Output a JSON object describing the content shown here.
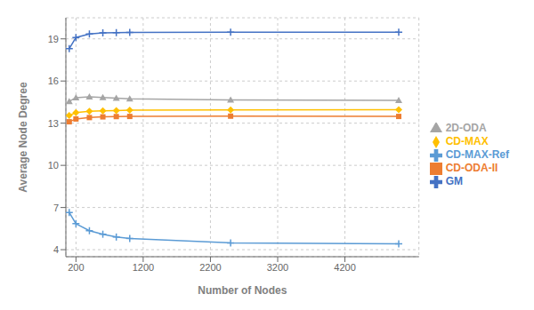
{
  "chart_data": {
    "type": "line",
    "xlabel": "Number of Nodes",
    "ylabel": "Average Node Degree",
    "x": [
      100,
      200,
      400,
      600,
      800,
      1000,
      2500,
      5000
    ],
    "series": [
      {
        "name": "GM",
        "color": "#4472C4",
        "marker": "plus",
        "values": [
          18.3,
          19.1,
          19.35,
          19.42,
          19.44,
          19.45,
          19.47,
          19.48
        ]
      },
      {
        "name": "CD-ODA-II",
        "color": "#ED7D31",
        "marker": "square",
        "values": [
          13.1,
          13.3,
          13.4,
          13.45,
          13.47,
          13.48,
          13.5,
          13.48
        ]
      },
      {
        "name": "2D-ODA",
        "color": "#A5A5A5",
        "marker": "triangle",
        "values": [
          14.55,
          14.82,
          14.88,
          14.83,
          14.78,
          14.73,
          14.65,
          14.62
        ]
      },
      {
        "name": "CD-MAX",
        "color": "#FFC000",
        "marker": "diamond",
        "values": [
          13.55,
          13.75,
          13.85,
          13.88,
          13.9,
          13.92,
          13.95,
          13.96
        ]
      },
      {
        "name": "CD-MAX-Ref",
        "color": "#5B9BD5",
        "marker": "plus",
        "values": [
          6.65,
          5.85,
          5.35,
          5.1,
          4.9,
          4.8,
          4.48,
          4.42
        ]
      }
    ],
    "xlim": [
      50,
      5300
    ],
    "xticks": [
      200,
      1200,
      2200,
      3200,
      4200
    ],
    "ylim": [
      3.5,
      20.5
    ],
    "yticks": [
      4,
      7,
      10,
      13,
      16,
      19
    ],
    "grid": true,
    "legend": "right"
  }
}
